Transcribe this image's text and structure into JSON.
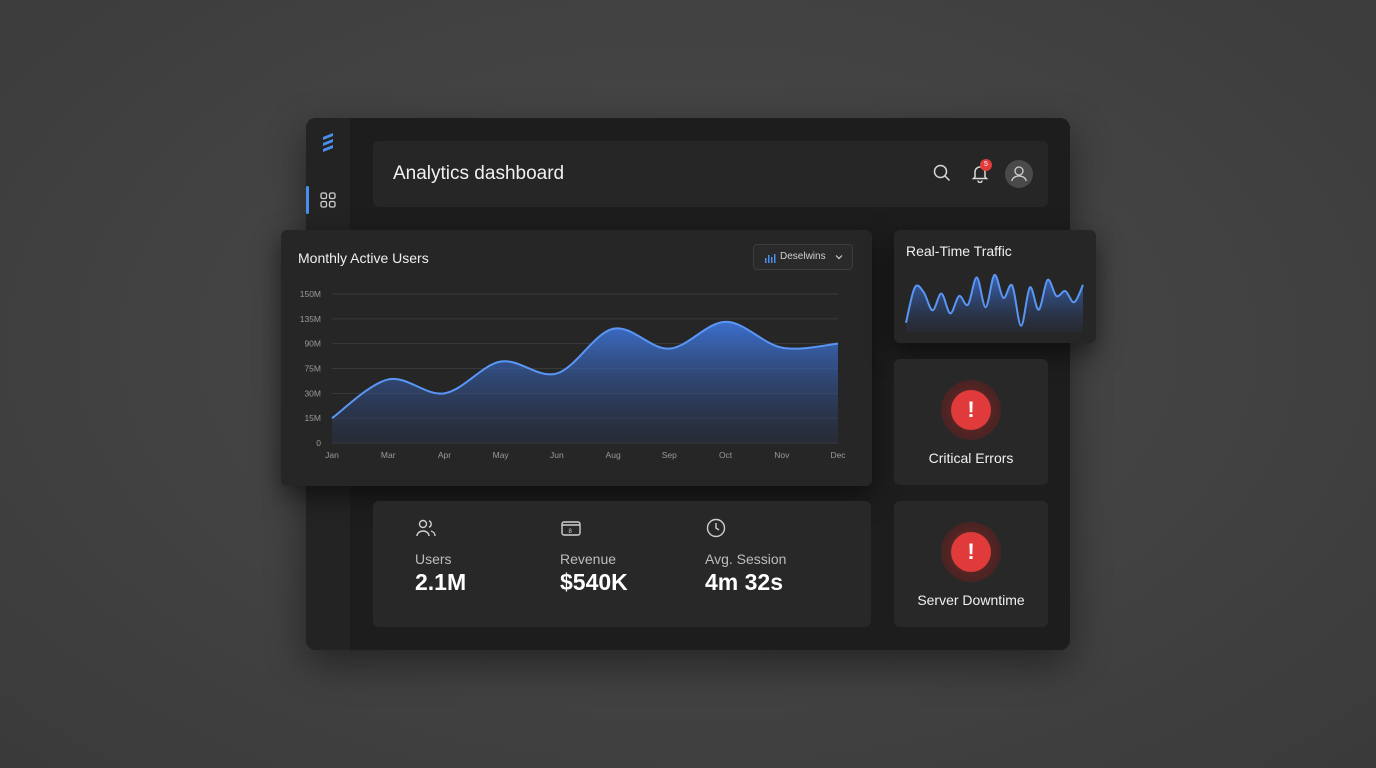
{
  "header": {
    "title": "Analytics dashboard",
    "notification_count": "5",
    "icons": [
      "search-icon",
      "bell-icon",
      "user-icon"
    ]
  },
  "sidebar": {
    "logo": "logo-stripes",
    "items": [
      {
        "icon": "grid-icon",
        "active": true
      }
    ]
  },
  "monthly_active_users": {
    "title": "Monthly Active Users",
    "dropdown_label": "Deselwins"
  },
  "real_time_traffic": {
    "title": "Real-Time Traffic"
  },
  "alerts": [
    {
      "label": "Critical Errors",
      "icon": "exclamation-icon"
    },
    {
      "label": "Server Downtime",
      "icon": "exclamation-icon"
    }
  ],
  "stats": [
    {
      "label": "Users",
      "value": "2.1M",
      "icon": "users-icon"
    },
    {
      "label": "Revenue",
      "value": "$540K",
      "icon": "wallet-icon"
    },
    {
      "label": "Avg. Session",
      "value": "4m 32s",
      "icon": "clock-icon"
    }
  ],
  "colors": {
    "accent": "#4a8ff0",
    "alert": "#e03a3a",
    "background": "#444444",
    "panel": "#1d1d1d"
  },
  "chart_data": [
    {
      "type": "area",
      "title": "Monthly Active Users",
      "categories": [
        "Jan",
        "Mar",
        "Apr",
        "May",
        "Jun",
        "Aug",
        "Sep",
        "Oct",
        "Nov",
        "Dec"
      ],
      "y_tick_labels": [
        "0",
        "15M",
        "30M",
        "75M",
        "90M",
        "135M",
        "150M"
      ],
      "values": [
        25,
        64,
        50,
        82,
        70,
        115,
        95,
        122,
        96,
        100
      ],
      "ylim": [
        0,
        150
      ],
      "grid": true,
      "series": [
        {
          "values": [
            25,
            64,
            50,
            82,
            70,
            115,
            95,
            122,
            96,
            100
          ]
        }
      ]
    },
    {
      "type": "area",
      "title": "Real-Time Traffic",
      "values": [
        15,
        72,
        64,
        35,
        62,
        30,
        58,
        44,
        88,
        40,
        92,
        55,
        75,
        10,
        72,
        36,
        84,
        58,
        66,
        48,
        76
      ],
      "ylim": [
        0,
        100
      ],
      "grid": false
    }
  ]
}
